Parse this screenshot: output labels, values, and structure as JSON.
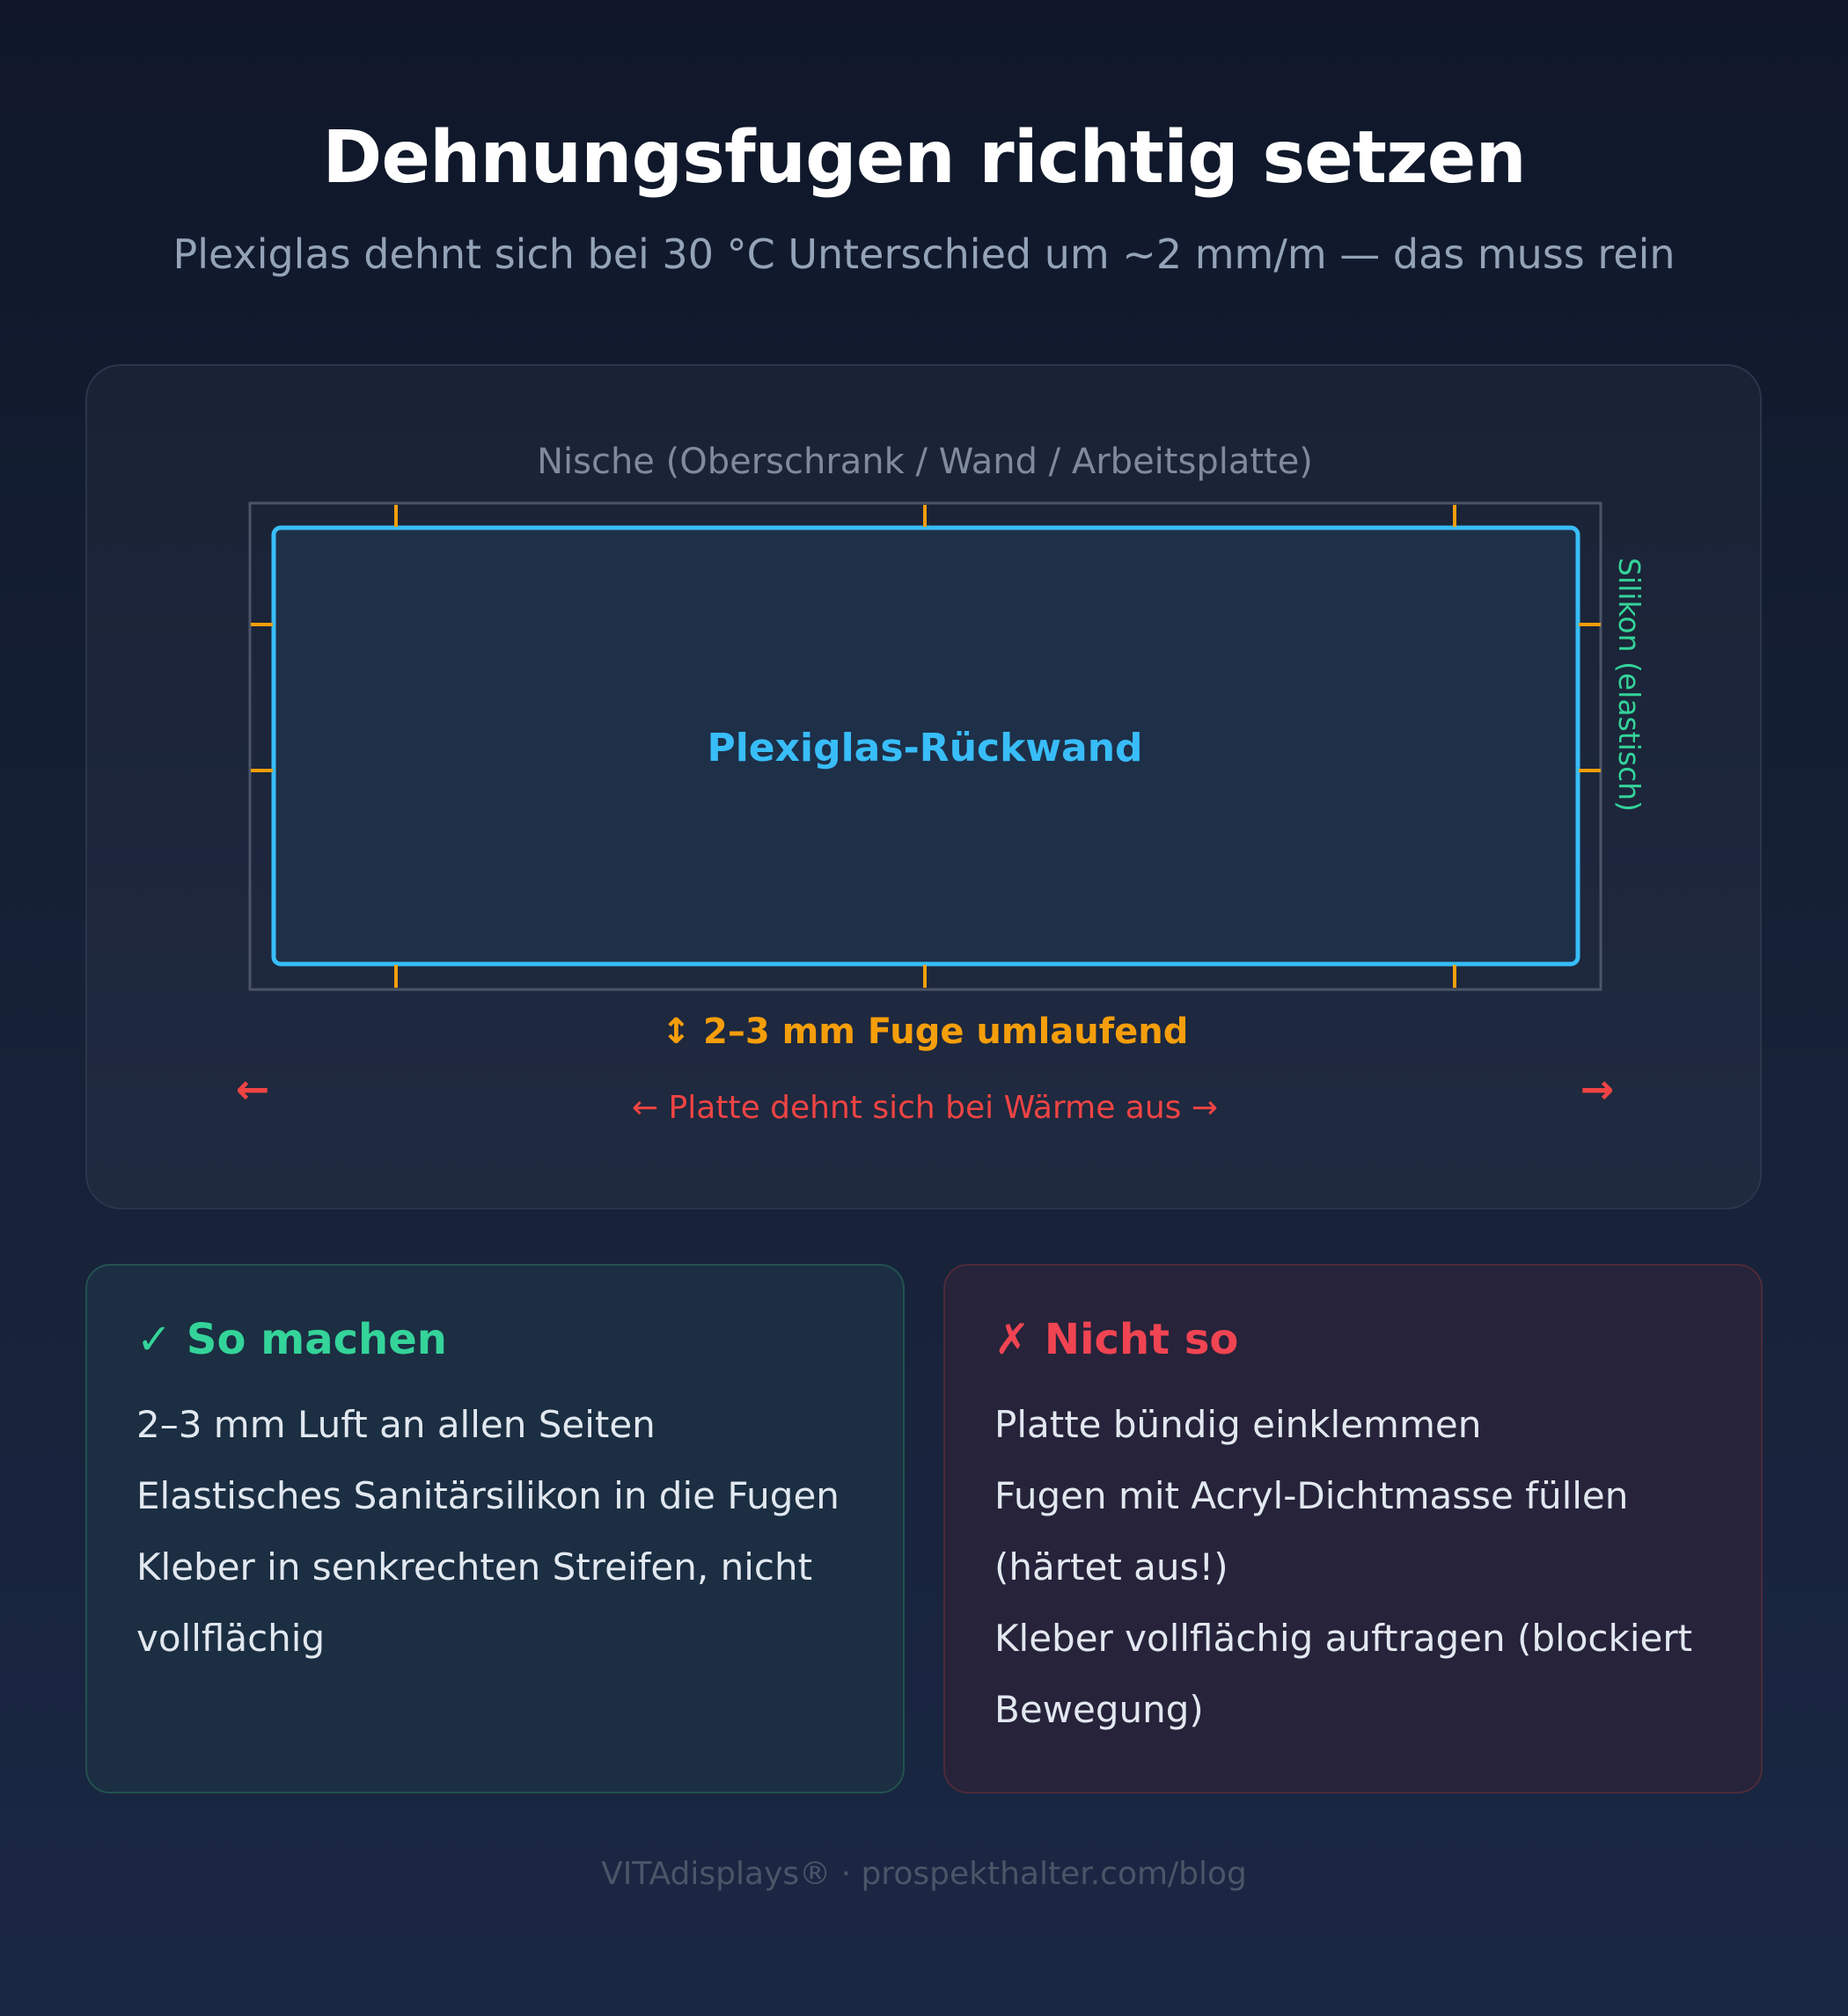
{
  "title": "Dehnungsfugen richtig setzen",
  "subtitle": "Plexiglas dehnt sich bei 30 °C Unterschied um ~2 mm/m — das muss rein",
  "diagram": {
    "niche_label": "Nische (Oberschrank / Wand / Arbeitsplatte)",
    "panel_label": "Plexiglas-Rückwand",
    "silicone_label": "Silikon (elastisch)",
    "gap_label": "↕ 2–3 mm Fuge umlaufend",
    "expansion_label": "← Platte dehnt sich bei Wärme aus →",
    "arrow_left": "←",
    "arrow_right": "→",
    "colors": {
      "niche": "#4b5567",
      "panel_stroke": "#38bdf8",
      "panel_fill": "#1e2f48",
      "gap": "#f59e0b",
      "silicone": "#34d399",
      "expansion": "#ef4444"
    }
  },
  "do_box": {
    "heading": "✓ So machen",
    "items": [
      "2–3 mm Luft an allen Seiten",
      "Elastisches Sanitärsilikon in die Fugen",
      "Kleber in senkrechten Streifen, nicht vollflächig"
    ]
  },
  "dont_box": {
    "heading": "✗ Nicht so",
    "items": [
      "Platte bündig einklemmen",
      "Fugen mit Acryl-Dichtmasse füllen (härtet aus!)",
      "Kleber vollflächig auftragen (blockiert Bewegung)"
    ]
  },
  "footer": "VITAdisplays® · prospekthalter.com/blog"
}
